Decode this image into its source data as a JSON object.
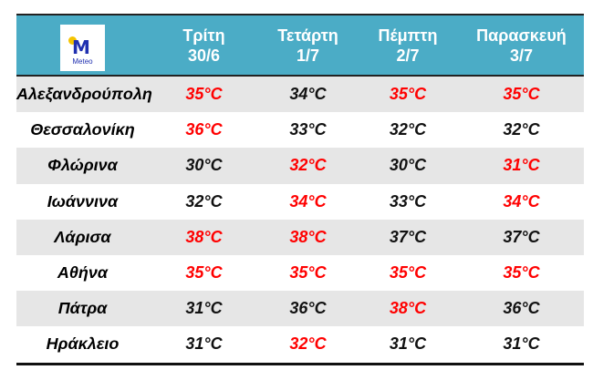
{
  "logo": {
    "text": "Meteo",
    "brand_color": "#2030B0",
    "accent": "#F5C400"
  },
  "header_color": "#4BACC6",
  "hot_color": "#FF0000",
  "days": [
    {
      "name": "Τρίτη",
      "date": "30/6"
    },
    {
      "name": "Τετάρτη",
      "date": "1/7"
    },
    {
      "name": "Πέμπτη",
      "date": "2/7"
    },
    {
      "name": "Παρασκευή",
      "date": "3/7"
    }
  ],
  "rows": [
    {
      "city": "Αλεξανδρούπολη",
      "temps": [
        "35°C",
        "34°C",
        "35°C",
        "35°C"
      ],
      "hot": [
        true,
        false,
        true,
        true
      ]
    },
    {
      "city": "Θεσσαλονίκη",
      "temps": [
        "36°C",
        "33°C",
        "32°C",
        "32°C"
      ],
      "hot": [
        true,
        false,
        false,
        false
      ]
    },
    {
      "city": "Φλώρινα",
      "temps": [
        "30°C",
        "32°C",
        "30°C",
        "31°C"
      ],
      "hot": [
        false,
        true,
        false,
        true
      ]
    },
    {
      "city": "Ιωάννινα",
      "temps": [
        "32°C",
        "34°C",
        "33°C",
        "34°C"
      ],
      "hot": [
        false,
        true,
        false,
        true
      ]
    },
    {
      "city": "Λάρισα",
      "temps": [
        "38°C",
        "38°C",
        "37°C",
        "37°C"
      ],
      "hot": [
        true,
        true,
        false,
        false
      ]
    },
    {
      "city": "Αθήνα",
      "temps": [
        "35°C",
        "35°C",
        "35°C",
        "35°C"
      ],
      "hot": [
        true,
        true,
        true,
        true
      ]
    },
    {
      "city": "Πάτρα",
      "temps": [
        "31°C",
        "36°C",
        "38°C",
        "36°C"
      ],
      "hot": [
        false,
        false,
        true,
        false
      ]
    },
    {
      "city": "Ηράκλειο",
      "temps": [
        "31°C",
        "32°C",
        "31°C",
        "31°C"
      ],
      "hot": [
        false,
        true,
        false,
        false
      ]
    }
  ]
}
